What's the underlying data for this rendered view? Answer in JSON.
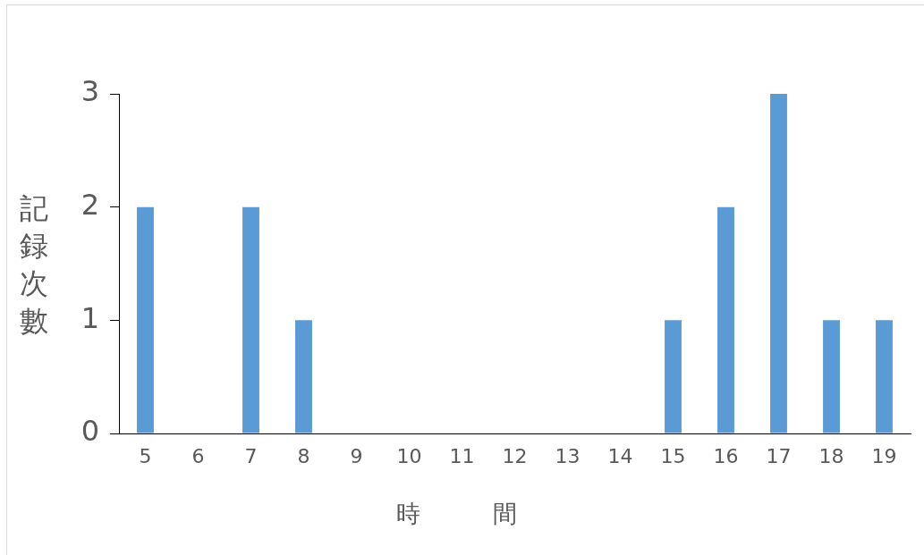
{
  "chart_data": {
    "type": "bar",
    "xlabel": "時　　　間",
    "ylabel": "記録次數",
    "categories": [
      "5",
      "6",
      "7",
      "8",
      "9",
      "10",
      "11",
      "12",
      "13",
      "14",
      "15",
      "16",
      "17",
      "18",
      "19"
    ],
    "values": [
      2,
      0,
      2,
      1,
      0,
      0,
      0,
      0,
      0,
      0,
      1,
      2,
      3,
      1,
      1
    ],
    "color": "#5b9bd5",
    "ylim": [
      0,
      3
    ],
    "yticks": [
      0,
      1,
      2,
      3
    ],
    "grid": false
  }
}
